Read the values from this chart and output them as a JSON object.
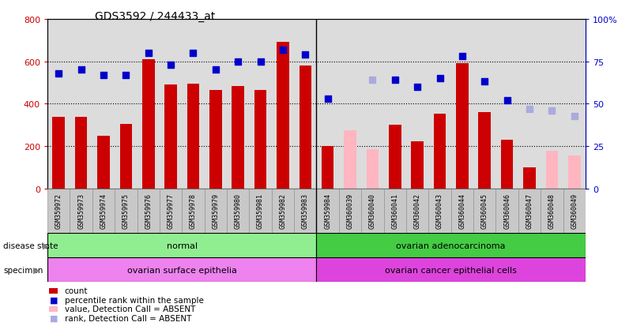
{
  "title": "GDS3592 / 244433_at",
  "samples": [
    "GSM359972",
    "GSM359973",
    "GSM359974",
    "GSM359975",
    "GSM359976",
    "GSM359977",
    "GSM359978",
    "GSM359979",
    "GSM359980",
    "GSM359981",
    "GSM359982",
    "GSM359983",
    "GSM359984",
    "GSM360039",
    "GSM360040",
    "GSM360041",
    "GSM360042",
    "GSM360043",
    "GSM360044",
    "GSM360045",
    "GSM360046",
    "GSM360047",
    "GSM360048",
    "GSM360049"
  ],
  "counts": [
    340,
    340,
    248,
    305,
    610,
    490,
    495,
    465,
    485,
    465,
    690,
    580,
    200,
    null,
    null,
    300,
    225,
    355,
    590,
    360,
    230,
    100,
    null,
    null
  ],
  "counts_absent": [
    null,
    null,
    null,
    null,
    null,
    null,
    null,
    null,
    null,
    null,
    null,
    null,
    null,
    275,
    185,
    null,
    null,
    null,
    null,
    null,
    null,
    null,
    180,
    158
  ],
  "ranks": [
    68,
    70,
    67,
    67,
    80,
    73,
    80,
    70,
    75,
    75,
    82,
    79,
    53,
    null,
    null,
    64,
    60,
    65,
    78,
    63,
    52,
    null,
    null,
    null
  ],
  "ranks_absent": [
    null,
    null,
    null,
    null,
    null,
    null,
    null,
    null,
    null,
    null,
    null,
    null,
    null,
    null,
    64,
    null,
    null,
    null,
    null,
    null,
    null,
    47,
    46,
    43
  ],
  "absent_flags": [
    false,
    false,
    false,
    false,
    false,
    false,
    false,
    false,
    false,
    false,
    false,
    false,
    false,
    true,
    true,
    false,
    false,
    false,
    false,
    false,
    false,
    false,
    true,
    true
  ],
  "disease_state_groups": [
    {
      "label": "normal",
      "start": 0,
      "end": 12,
      "color": "#90EE90"
    },
    {
      "label": "ovarian adenocarcinoma",
      "start": 12,
      "end": 24,
      "color": "#44CC44"
    }
  ],
  "specimen_groups": [
    {
      "label": "ovarian surface epithelia",
      "start": 0,
      "end": 12,
      "color": "#EE82EE"
    },
    {
      "label": "ovarian cancer epithelial cells",
      "start": 12,
      "end": 24,
      "color": "#DD44DD"
    }
  ],
  "bar_color_present": "#CC0000",
  "bar_color_absent": "#FFB6C1",
  "rank_color_present": "#0000CC",
  "rank_color_absent": "#AAAADD",
  "ylim_left": [
    0,
    800
  ],
  "ylim_right": [
    0,
    100
  ],
  "yticks_left": [
    0,
    200,
    400,
    600,
    800
  ],
  "yticks_right": [
    0,
    25,
    50,
    75,
    100
  ],
  "background_color": "#DCDCDC",
  "legend_items": [
    {
      "label": "count",
      "color": "#CC0000",
      "type": "bar"
    },
    {
      "label": "percentile rank within the sample",
      "color": "#0000CC",
      "type": "square"
    },
    {
      "label": "value, Detection Call = ABSENT",
      "color": "#FFB6C1",
      "type": "bar"
    },
    {
      "label": "rank, Detection Call = ABSENT",
      "color": "#AAAADD",
      "type": "square"
    }
  ],
  "divider_at": 11.5
}
